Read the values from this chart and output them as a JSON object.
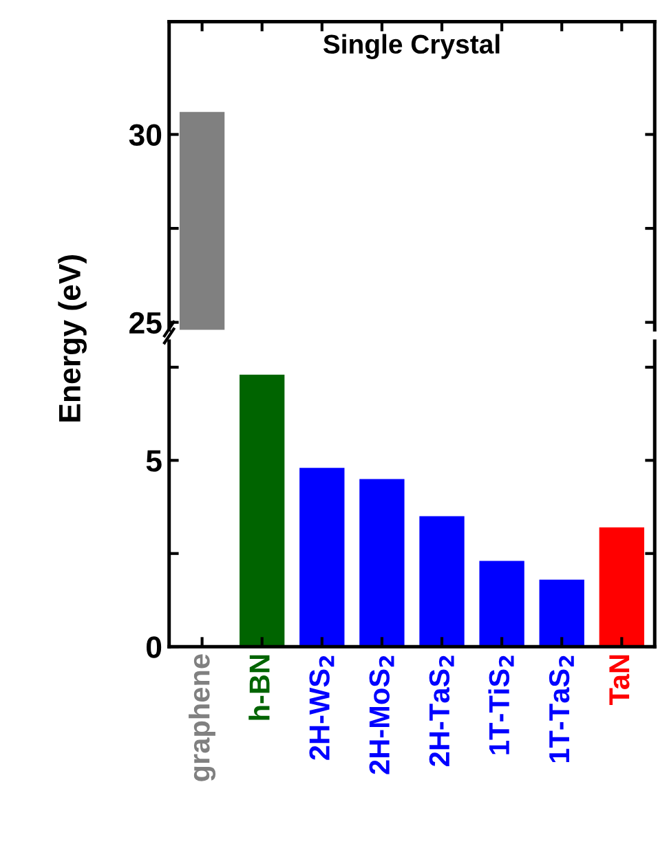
{
  "chart_data": [
    {
      "type": "bar",
      "title": "Single Crystal",
      "categories": [
        null,
        null,
        null,
        null,
        null,
        null,
        null,
        null
      ],
      "values": [
        30.6,
        null,
        null,
        null,
        null,
        null,
        null,
        null
      ],
      "colors": [
        "#808080",
        "#006400",
        "#0000ff",
        "#0000ff",
        "#0000ff",
        "#0000ff",
        "#0000ff",
        "#ff0000"
      ],
      "ylim": [
        24.8,
        33
      ],
      "yticks": [
        25,
        {
          "value": 27.5,
          "label": null
        },
        30
      ],
      "grid": false,
      "legend": false
    },
    {
      "type": "bar",
      "ylabel": "Energy (eV)",
      "categories": [
        "graphene",
        "h-BN",
        "2H-WS$_{2}$",
        "2H-MoS$_{2}$",
        "2H-TaS$_{2}$",
        "1T-TiS$_{2}$",
        "1T-TaS$_{2}$",
        "TaN"
      ],
      "values": [
        null,
        7.3,
        4.8,
        4.5,
        3.5,
        2.3,
        1.8,
        3.2
      ],
      "colors": [
        "#808080",
        "#006400",
        "#0000ff",
        "#0000ff",
        "#0000ff",
        "#0000ff",
        "#0000ff",
        "#ff0000"
      ],
      "ylim": [
        0,
        8.2
      ],
      "yticks": [
        0,
        {
          "value": 2.5,
          "label": null
        },
        5,
        {
          "value": 7.5,
          "label": null
        }
      ],
      "grid": false,
      "legend": false
    }
  ]
}
